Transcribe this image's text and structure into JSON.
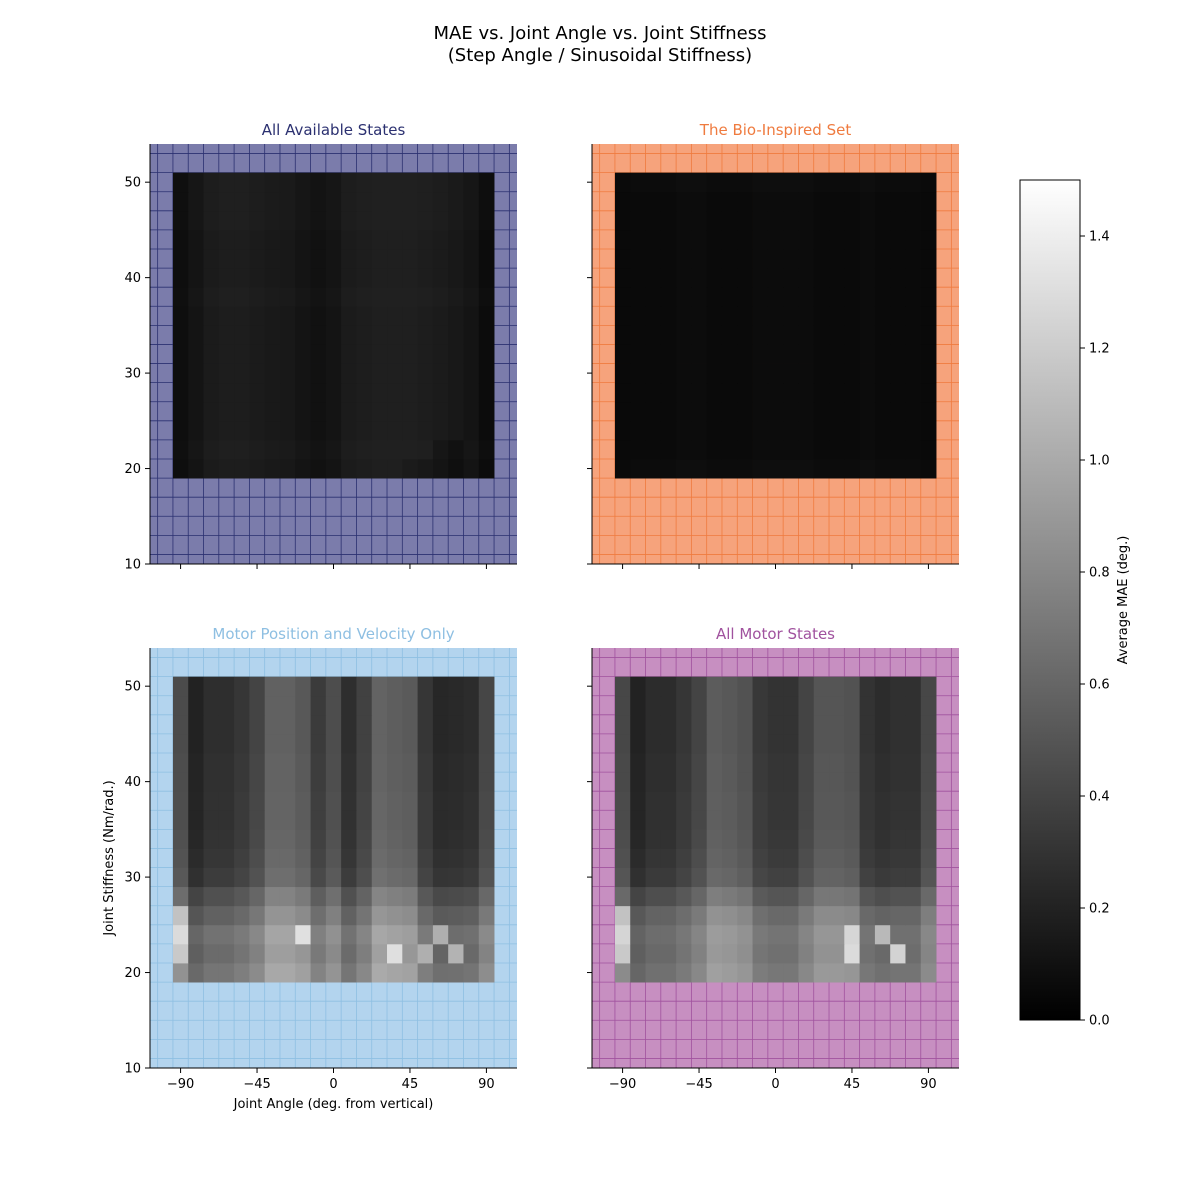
{
  "figure": {
    "title_line1": "MAE vs. Joint Angle vs. Joint Stiffness",
    "title_line2": "(Step Angle / Sinusoidal Stiffness)"
  },
  "chart_data": {
    "type": "heatmap",
    "x": [
      -90,
      -81,
      -72,
      -63,
      -54,
      -45,
      -36,
      -27,
      -18,
      -9,
      0,
      9,
      18,
      27,
      36,
      45,
      54,
      63,
      72,
      81,
      90
    ],
    "y": [
      20,
      22,
      24,
      26,
      28,
      30,
      32,
      34,
      36,
      38,
      40,
      42,
      44,
      46,
      48,
      50
    ],
    "xlabel": "Joint Angle (deg. from vertical)",
    "ylabel": "Joint Stiffness (Nm/rad.)",
    "xticks": [
      -90,
      -45,
      0,
      45,
      90
    ],
    "yticks": [
      10,
      20,
      30,
      40,
      50
    ],
    "xlim": [
      -108,
      108
    ],
    "ylim": [
      10,
      54
    ],
    "colorbar": {
      "label": "Average MAE (deg.)",
      "range": [
        0.0,
        1.5
      ],
      "ticks": [
        0.0,
        0.2,
        0.4,
        0.6,
        0.8,
        1.0,
        1.2,
        1.4
      ],
      "tick_labels": [
        "0.0",
        "0.2",
        "0.4",
        "0.6",
        "0.8",
        "1.0",
        "1.2",
        "1.4"
      ],
      "colormap": "gray"
    },
    "subplots": [
      {
        "title": "All Available States",
        "title_color": "#2b3070",
        "bg_color": "#7b7cab",
        "grid_color": "#2b3070",
        "col_profile": [
          0.08,
          0.12,
          0.16,
          0.17,
          0.17,
          0.16,
          0.15,
          0.14,
          0.12,
          0.1,
          0.12,
          0.16,
          0.17,
          0.18,
          0.18,
          0.18,
          0.17,
          0.16,
          0.14,
          0.12,
          0.07
        ],
        "row_profile": [
          0.0,
          0.01,
          0.0,
          0.0,
          0.0,
          0.0,
          0.0,
          0.0,
          0.0,
          0.01,
          0.0,
          0.0,
          0.0,
          0.01,
          0.01,
          0.01
        ],
        "spikes": [
          [
            0,
            15,
            -0.02
          ],
          [
            0,
            16,
            -0.03
          ],
          [
            0,
            17,
            -0.04
          ],
          [
            0,
            18,
            -0.05
          ],
          [
            1,
            17,
            -0.04
          ],
          [
            1,
            18,
            -0.05
          ]
        ]
      },
      {
        "title": "The Bio-Inspired Set",
        "title_color": "#ef7b3f",
        "bg_color": "#f6a37c",
        "grid_color": "#ef7b3f",
        "col_profile": [
          0.05,
          0.06,
          0.06,
          0.06,
          0.07,
          0.07,
          0.06,
          0.06,
          0.06,
          0.07,
          0.07,
          0.07,
          0.07,
          0.06,
          0.06,
          0.06,
          0.07,
          0.06,
          0.06,
          0.06,
          0.05
        ],
        "row_profile": [
          0.01,
          0.0,
          0.0,
          0.0,
          0.0,
          0.0,
          0.0,
          0.0,
          0.0,
          0.0,
          0.0,
          0.0,
          0.0,
          0.0,
          0.0,
          0.01
        ],
        "spikes": []
      },
      {
        "title": "Motor Position and Velocity Only",
        "title_color": "#8ebfe2",
        "bg_color": "#b3d4ee",
        "grid_color": "#8ebfe2",
        "col_profile": [
          0.44,
          0.2,
          0.27,
          0.27,
          0.32,
          0.4,
          0.57,
          0.57,
          0.52,
          0.35,
          0.45,
          0.27,
          0.38,
          0.58,
          0.55,
          0.53,
          0.32,
          0.23,
          0.24,
          0.26,
          0.41
        ],
        "row_profile": [
          0.42,
          0.36,
          0.4,
          0.3,
          0.2,
          0.08,
          0.05,
          0.03,
          0.02,
          0.02,
          0.01,
          0.01,
          0.0,
          0.0,
          0.0,
          0.0
        ],
        "spikes": [
          [
            1,
            18,
            0.45
          ],
          [
            1,
            14,
            0.4
          ],
          [
            1,
            16,
            0.35
          ],
          [
            2,
            8,
            0.4
          ],
          [
            2,
            17,
            0.4
          ],
          [
            1,
            0,
            0.38
          ],
          [
            2,
            0,
            0.45
          ],
          [
            3,
            0,
            0.4
          ]
        ]
      },
      {
        "title": "All Motor States",
        "title_color": "#a0529e",
        "bg_color": "#c78fc1",
        "grid_color": "#a0529e",
        "col_profile": [
          0.42,
          0.2,
          0.26,
          0.26,
          0.32,
          0.4,
          0.54,
          0.52,
          0.48,
          0.33,
          0.3,
          0.3,
          0.4,
          0.5,
          0.5,
          0.48,
          0.3,
          0.26,
          0.28,
          0.28,
          0.42
        ],
        "row_profile": [
          0.4,
          0.36,
          0.38,
          0.32,
          0.2,
          0.08,
          0.05,
          0.03,
          0.02,
          0.02,
          0.01,
          0.01,
          0.0,
          0.0,
          0.0,
          0.0
        ],
        "spikes": [
          [
            1,
            18,
            0.6
          ],
          [
            1,
            15,
            0.45
          ],
          [
            2,
            17,
            0.45
          ],
          [
            2,
            15,
            0.4
          ],
          [
            1,
            0,
            0.4
          ],
          [
            2,
            0,
            0.45
          ],
          [
            3,
            0,
            0.4
          ]
        ]
      }
    ]
  }
}
